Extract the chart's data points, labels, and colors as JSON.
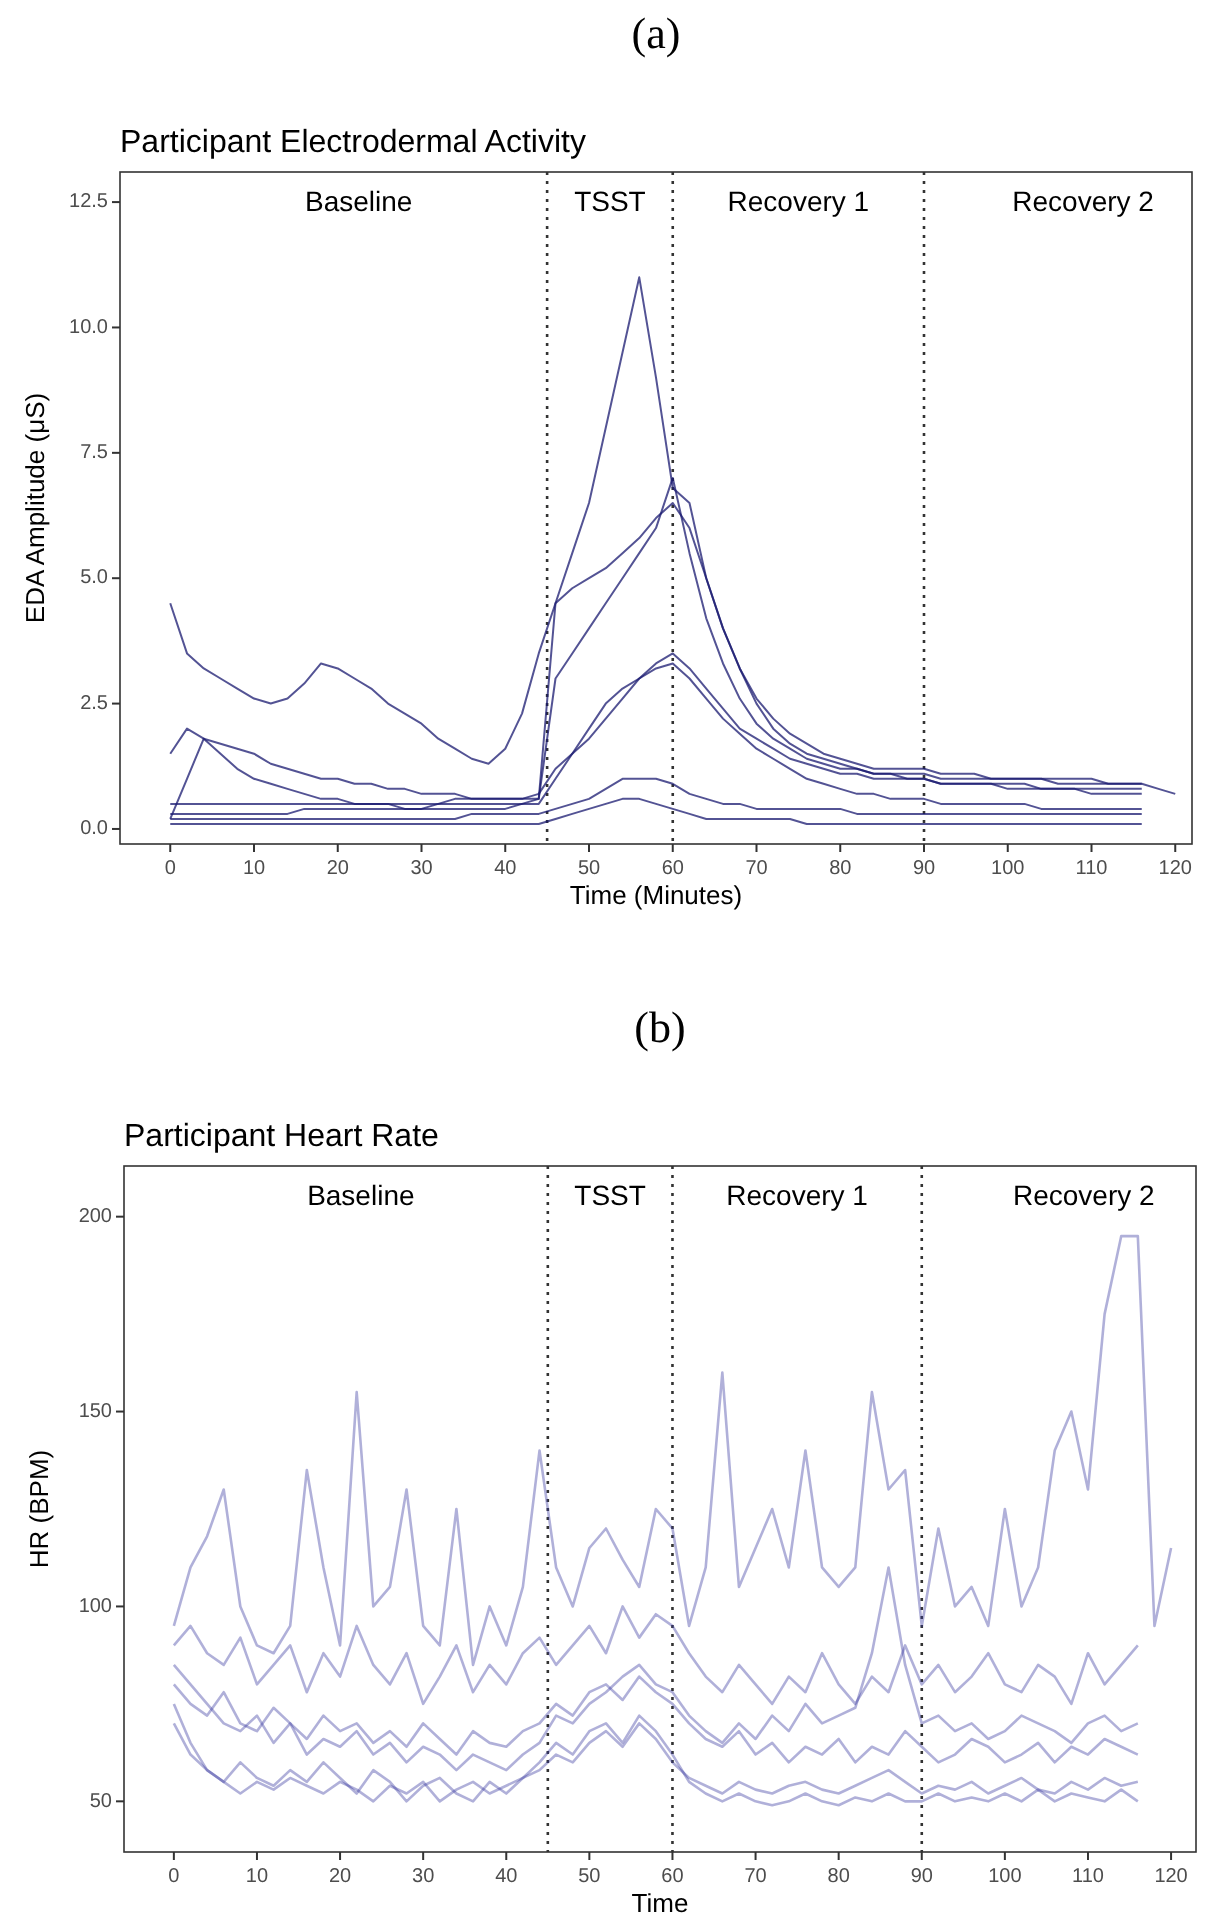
{
  "chart_data": [
    {
      "type": "line",
      "title": "Participant Electrodermal Activity",
      "xlabel": "Time (Minutes)",
      "ylabel": "EDA Amplitude (μS)",
      "annotations": [
        "(a)",
        "Baseline",
        "TSST",
        "Recovery 1",
        "Recovery 2"
      ],
      "x": [
        0,
        2,
        4,
        6,
        8,
        10,
        12,
        14,
        16,
        18,
        20,
        22,
        24,
        26,
        28,
        30,
        32,
        34,
        36,
        38,
        40,
        42,
        44,
        46,
        48,
        50,
        52,
        54,
        56,
        58,
        60,
        62,
        64,
        66,
        68,
        70,
        72,
        74,
        76,
        78,
        80,
        82,
        84,
        86,
        88,
        90,
        92,
        94,
        96,
        98,
        100,
        102,
        104,
        106,
        108,
        110,
        112,
        114,
        116,
        118,
        120
      ],
      "xlim": [
        -6,
        122
      ],
      "ylim": [
        -0.3,
        13.1
      ],
      "xticks": [
        0,
        10,
        20,
        30,
        40,
        50,
        60,
        70,
        80,
        90,
        100,
        110,
        120
      ],
      "yticks": [
        {
          "value": 0,
          "label": "0.0"
        },
        2.5,
        {
          "value": 5,
          "label": "5.0"
        },
        7.5,
        {
          "value": 10,
          "label": "10.0"
        },
        12.5
      ],
      "ref_lines": [
        {
          "axis": "x",
          "value": 45,
          "line_style": "dotted",
          "color": "#333333"
        },
        {
          "axis": "x",
          "value": 60,
          "line_style": "dotted",
          "color": "#333333"
        },
        {
          "axis": "x",
          "value": 90,
          "line_style": "dotted",
          "color": "#333333"
        }
      ],
      "series": [
        {
          "color": "#191970",
          "values": [
            4.5,
            3.5,
            3.2,
            3.0,
            2.8,
            2.6,
            2.5,
            2.6,
            2.9,
            3.3,
            3.2,
            3.0,
            2.8,
            2.5,
            2.3,
            2.1,
            1.8,
            1.6,
            1.4,
            1.3,
            1.6,
            2.3,
            3.5,
            4.5,
            5.5,
            6.5,
            8.0,
            9.5,
            11.0,
            9.0,
            6.8,
            6.5,
            5.0,
            4.0,
            3.2,
            2.6,
            2.2,
            1.9,
            1.7,
            1.5,
            1.4,
            1.3,
            1.2,
            1.2,
            1.2,
            1.2,
            1.1,
            1.1,
            1.1,
            1.0,
            1.0,
            1.0,
            1.0,
            1.0,
            1.0,
            1.0,
            0.9,
            0.9,
            0.9,
            0.8,
            0.7
          ]
        },
        {
          "color": "#191970",
          "values": [
            0.3,
            0.3,
            0.3,
            0.3,
            0.3,
            0.3,
            0.3,
            0.3,
            0.4,
            0.4,
            0.4,
            0.4,
            0.4,
            0.4,
            0.4,
            0.4,
            0.5,
            0.5,
            0.5,
            0.5,
            0.5,
            0.5,
            0.6,
            4.5,
            4.8,
            5.0,
            5.2,
            5.5,
            5.8,
            6.2,
            6.5,
            6.0,
            5.0,
            4.0,
            3.2,
            2.5,
            2.0,
            1.7,
            1.5,
            1.4,
            1.3,
            1.2,
            1.1,
            1.1,
            1.0,
            1.0,
            0.9,
            0.9,
            0.9,
            0.9,
            0.8,
            0.8,
            0.8,
            0.8,
            0.8,
            0.7,
            0.7,
            0.7,
            0.7,
            null,
            null
          ]
        },
        {
          "color": "#191970",
          "values": [
            1.5,
            2.0,
            1.8,
            1.5,
            1.2,
            1.0,
            0.9,
            0.8,
            0.7,
            0.6,
            0.6,
            0.5,
            0.5,
            0.5,
            0.4,
            0.4,
            0.4,
            0.4,
            0.4,
            0.4,
            0.4,
            0.5,
            0.5,
            1.0,
            1.5,
            2.0,
            2.5,
            2.8,
            3.0,
            3.2,
            3.3,
            3.0,
            2.6,
            2.2,
            1.9,
            1.6,
            1.4,
            1.2,
            1.0,
            0.9,
            0.8,
            0.7,
            0.7,
            0.6,
            0.6,
            0.6,
            0.5,
            0.5,
            0.5,
            0.5,
            0.5,
            0.5,
            0.4,
            0.4,
            0.4,
            0.4,
            0.4,
            0.4,
            0.4,
            null,
            null
          ]
        },
        {
          "color": "#191970",
          "values": [
            0.2,
            1.0,
            1.8,
            1.7,
            1.6,
            1.5,
            1.3,
            1.2,
            1.1,
            1.0,
            1.0,
            0.9,
            0.9,
            0.8,
            0.8,
            0.7,
            0.7,
            0.7,
            0.6,
            0.6,
            0.6,
            0.6,
            0.7,
            1.2,
            1.5,
            1.8,
            2.2,
            2.6,
            3.0,
            3.3,
            3.5,
            3.2,
            2.8,
            2.4,
            2.0,
            1.8,
            1.6,
            1.4,
            1.3,
            1.2,
            1.1,
            1.1,
            1.0,
            1.0,
            1.0,
            1.0,
            0.9,
            0.9,
            0.9,
            0.9,
            0.9,
            0.9,
            0.8,
            0.8,
            0.8,
            0.8,
            0.8,
            0.8,
            0.8,
            null,
            null
          ]
        },
        {
          "color": "#191970",
          "values": [
            0.2,
            0.2,
            0.2,
            0.2,
            0.2,
            0.2,
            0.2,
            0.2,
            0.2,
            0.2,
            0.2,
            0.2,
            0.2,
            0.2,
            0.2,
            0.2,
            0.2,
            0.2,
            0.3,
            0.3,
            0.3,
            0.3,
            0.3,
            0.4,
            0.5,
            0.6,
            0.8,
            1.0,
            1.0,
            1.0,
            0.9,
            0.7,
            0.6,
            0.5,
            0.5,
            0.4,
            0.4,
            0.4,
            0.4,
            0.4,
            0.4,
            0.3,
            0.3,
            0.3,
            0.3,
            0.3,
            0.3,
            0.3,
            0.3,
            0.3,
            0.3,
            0.3,
            0.3,
            0.3,
            0.3,
            0.3,
            0.3,
            0.3,
            0.3,
            null,
            null
          ]
        },
        {
          "color": "#191970",
          "values": [
            0.1,
            0.1,
            0.1,
            0.1,
            0.1,
            0.1,
            0.1,
            0.1,
            0.1,
            0.1,
            0.1,
            0.1,
            0.1,
            0.1,
            0.1,
            0.1,
            0.1,
            0.1,
            0.1,
            0.1,
            0.1,
            0.1,
            0.1,
            0.2,
            0.3,
            0.4,
            0.5,
            0.6,
            0.6,
            0.5,
            0.4,
            0.3,
            0.2,
            0.2,
            0.2,
            0.2,
            0.2,
            0.2,
            0.1,
            0.1,
            0.1,
            0.1,
            0.1,
            0.1,
            0.1,
            0.1,
            0.1,
            0.1,
            0.1,
            0.1,
            0.1,
            0.1,
            0.1,
            0.1,
            0.1,
            0.1,
            0.1,
            0.1,
            0.1,
            null,
            null
          ]
        },
        {
          "color": "#191970",
          "values": [
            0.5,
            0.5,
            0.5,
            0.5,
            0.5,
            0.5,
            0.5,
            0.5,
            0.5,
            0.5,
            0.5,
            0.5,
            0.5,
            0.5,
            0.5,
            0.5,
            0.5,
            0.6,
            0.6,
            0.6,
            0.6,
            0.6,
            0.6,
            3.0,
            3.5,
            4.0,
            4.5,
            5.0,
            5.5,
            6.0,
            7.0,
            5.5,
            4.2,
            3.3,
            2.6,
            2.1,
            1.8,
            1.6,
            1.4,
            1.3,
            1.2,
            1.2,
            1.1,
            1.1,
            1.1,
            1.1,
            1.0,
            1.0,
            1.0,
            1.0,
            1.0,
            1.0,
            1.0,
            0.9,
            0.9,
            0.9,
            0.9,
            0.9,
            0.9,
            null,
            null
          ]
        }
      ]
    },
    {
      "type": "line",
      "title": "Participant Heart Rate",
      "xlabel": "Time",
      "ylabel": "HR (BPM)",
      "annotations": [
        "(b)",
        "Baseline",
        "TSST",
        "Recovery 1",
        "Recovery 2"
      ],
      "x": [
        0,
        2,
        4,
        6,
        8,
        10,
        12,
        14,
        16,
        18,
        20,
        22,
        24,
        26,
        28,
        30,
        32,
        34,
        36,
        38,
        40,
        42,
        44,
        46,
        48,
        50,
        52,
        54,
        56,
        58,
        60,
        62,
        64,
        66,
        68,
        70,
        72,
        74,
        76,
        78,
        80,
        82,
        84,
        86,
        88,
        90,
        92,
        94,
        96,
        98,
        100,
        102,
        104,
        106,
        108,
        110,
        112,
        114,
        116,
        118,
        120
      ],
      "xlim": [
        -6,
        123
      ],
      "ylim": [
        37,
        213
      ],
      "xticks": [
        0,
        10,
        20,
        30,
        40,
        50,
        60,
        70,
        80,
        90,
        100,
        110,
        120
      ],
      "yticks": [
        50,
        100,
        150,
        200
      ],
      "ref_lines": [
        {
          "axis": "x",
          "value": 45,
          "line_style": "dotted",
          "color": "#333333"
        },
        {
          "axis": "x",
          "value": 60,
          "line_style": "dotted",
          "color": "#333333"
        },
        {
          "axis": "x",
          "value": 90,
          "line_style": "dotted",
          "color": "#333333"
        }
      ],
      "series": [
        {
          "color": "#3a3aa0",
          "values": [
            95,
            110,
            118,
            130,
            100,
            90,
            88,
            95,
            135,
            110,
            90,
            155,
            100,
            105,
            130,
            95,
            90,
            125,
            85,
            100,
            90,
            105,
            140,
            110,
            100,
            115,
            120,
            112,
            105,
            125,
            120,
            95,
            110,
            160,
            105,
            115,
            125,
            110,
            140,
            110,
            105,
            110,
            155,
            130,
            135,
            95,
            120,
            100,
            105,
            95,
            125,
            100,
            110,
            140,
            150,
            130,
            175,
            195,
            195,
            95,
            115
          ]
        },
        {
          "color": "#3a3aa0",
          "values": [
            90,
            95,
            88,
            85,
            92,
            80,
            85,
            90,
            78,
            88,
            82,
            95,
            85,
            80,
            88,
            75,
            82,
            90,
            78,
            85,
            80,
            88,
            92,
            85,
            90,
            95,
            88,
            100,
            92,
            98,
            95,
            88,
            82,
            78,
            85,
            80,
            75,
            82,
            78,
            88,
            80,
            75,
            82,
            78,
            90,
            80,
            85,
            78,
            82,
            88,
            80,
            78,
            85,
            82,
            75,
            88,
            80,
            85,
            90,
            null,
            null
          ]
        },
        {
          "color": "#3a3aa0",
          "values": [
            75,
            65,
            58,
            55,
            60,
            56,
            54,
            58,
            55,
            60,
            56,
            52,
            58,
            55,
            50,
            54,
            56,
            52,
            50,
            55,
            52,
            56,
            60,
            65,
            62,
            68,
            70,
            65,
            72,
            68,
            62,
            55,
            52,
            50,
            52,
            50,
            49,
            50,
            52,
            50,
            49,
            51,
            50,
            52,
            50,
            50,
            52,
            50,
            51,
            50,
            52,
            50,
            53,
            50,
            52,
            51,
            50,
            53,
            50,
            null,
            null
          ]
        },
        {
          "color": "#3a3aa0",
          "values": [
            80,
            75,
            72,
            78,
            70,
            68,
            74,
            70,
            66,
            72,
            68,
            70,
            65,
            68,
            64,
            70,
            66,
            62,
            68,
            65,
            64,
            68,
            70,
            75,
            72,
            78,
            80,
            76,
            82,
            78,
            75,
            70,
            66,
            64,
            68,
            62,
            65,
            60,
            64,
            62,
            66,
            60,
            64,
            62,
            68,
            64,
            60,
            62,
            66,
            64,
            60,
            62,
            65,
            60,
            64,
            62,
            66,
            64,
            62,
            null,
            null
          ]
        },
        {
          "color": "#3a3aa0",
          "values": [
            85,
            80,
            75,
            70,
            68,
            72,
            65,
            70,
            62,
            66,
            64,
            68,
            62,
            65,
            60,
            64,
            62,
            58,
            62,
            60,
            58,
            62,
            65,
            72,
            70,
            75,
            78,
            82,
            85,
            80,
            78,
            72,
            68,
            65,
            70,
            66,
            72,
            68,
            75,
            70,
            72,
            74,
            88,
            110,
            85,
            70,
            72,
            68,
            70,
            66,
            68,
            72,
            70,
            68,
            65,
            70,
            72,
            68,
            70,
            null,
            null
          ]
        },
        {
          "color": "#3a3aa0",
          "values": [
            70,
            62,
            58,
            55,
            52,
            55,
            53,
            56,
            54,
            52,
            55,
            53,
            50,
            54,
            52,
            55,
            50,
            53,
            55,
            52,
            54,
            56,
            58,
            62,
            60,
            65,
            68,
            64,
            70,
            66,
            60,
            56,
            54,
            52,
            55,
            53,
            52,
            54,
            55,
            53,
            52,
            54,
            56,
            58,
            55,
            52,
            54,
            53,
            55,
            52,
            54,
            56,
            53,
            52,
            55,
            53,
            56,
            54,
            55,
            null,
            null
          ]
        }
      ]
    }
  ]
}
